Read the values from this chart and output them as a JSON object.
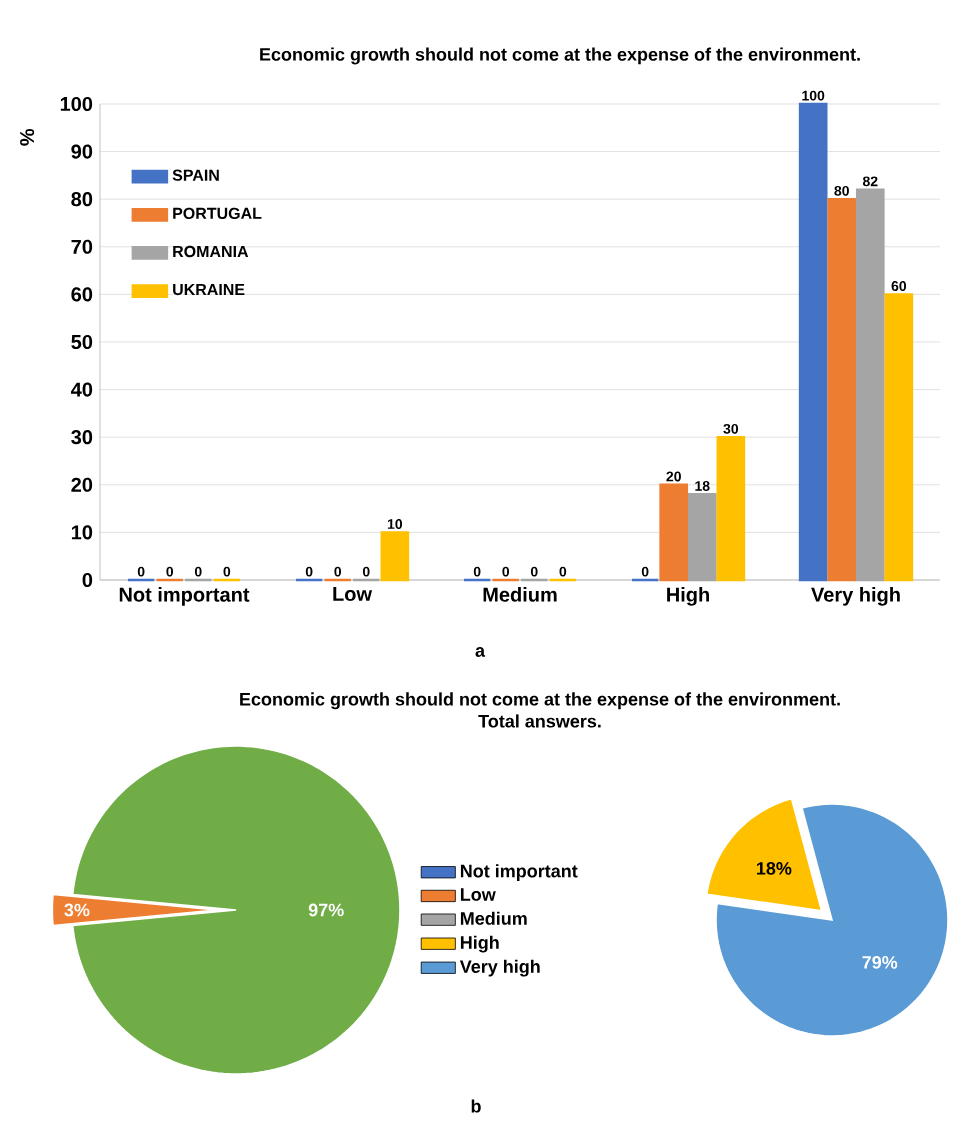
{
  "chart_data": [
    {
      "type": "bar",
      "title": "Economic growth should not come at the expense of the environment.",
      "ylabel": "%",
      "categories": [
        "Not important",
        "Low",
        "Medium",
        "High",
        "Very high"
      ],
      "series": [
        {
          "name": "SPAIN",
          "color": "#4472c4",
          "values": [
            0,
            0,
            0,
            0,
            100
          ]
        },
        {
          "name": "PORTUGAL",
          "color": "#ed7d31",
          "values": [
            0,
            0,
            0,
            20,
            80
          ]
        },
        {
          "name": "ROMANIA",
          "color": "#a5a5a5",
          "values": [
            0,
            0,
            0,
            18,
            82
          ]
        },
        {
          "name": "UKRAINE",
          "color": "#ffc000",
          "values": [
            0,
            10,
            0,
            30,
            60
          ]
        }
      ],
      "ylim": [
        0,
        100
      ],
      "yticks": [
        0,
        10,
        20,
        30,
        40,
        50,
        60,
        70,
        80,
        90,
        100
      ],
      "grid": "y",
      "legend": "left",
      "data_labels": true,
      "annotations": [
        "a"
      ]
    },
    {
      "type": "pie",
      "title": "Economic growth should not come at the expense of the environment.",
      "subtitle": "Total answers.",
      "categories": [
        null,
        null
      ],
      "values": [
        97,
        3
      ],
      "colors": [
        "#70ad47",
        "#ed7d31"
      ],
      "value_labels": [
        "97%",
        "3%"
      ],
      "annotations": [
        "b"
      ]
    },
    {
      "type": "pie",
      "categories": [
        "Not important",
        "Low",
        "Medium",
        "High",
        "Very high"
      ],
      "values": [
        0,
        0,
        0,
        18,
        79
      ],
      "colors": [
        "#4472c4",
        "#ed7d31",
        "#a5a5a5",
        "#ffc000",
        "#5b9bd5"
      ],
      "value_labels": [
        null,
        null,
        null,
        "18%",
        "79%"
      ],
      "legend": "left"
    }
  ]
}
